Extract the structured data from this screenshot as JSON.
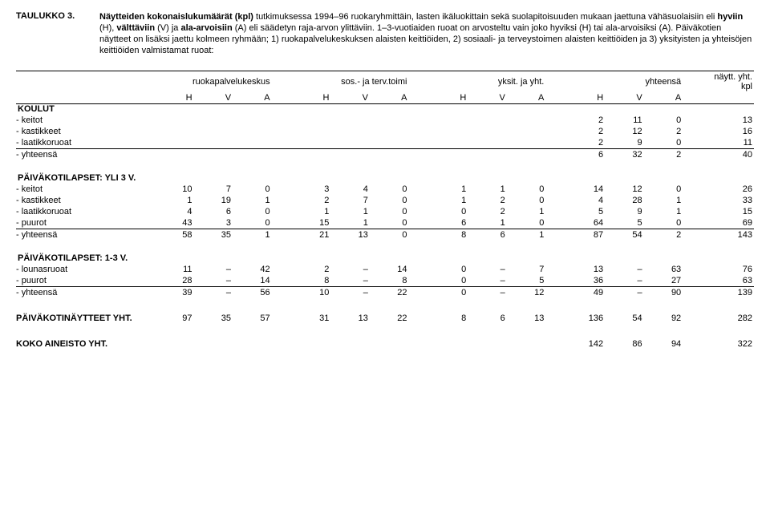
{
  "header": {
    "label": "TAULUKKO 3.",
    "p1_a": "Näytteiden kokonaislukumäärät (kpl)",
    "p1_b": " tutkimuksessa 1994–96 ruokaryhmittäin, lasten ikäluokittain sekä suolapitoisuuden mukaan jaettuna vähäsuolaisiin eli ",
    "p1_c": "hyviin",
    "p1_d": " (H), ",
    "p1_e": "välttäviin",
    "p1_f": " (V) ja ",
    "p1_g": "ala-arvoisiin",
    "p1_h": " (A) eli säädetyn raja-arvon ylittäviin. 1–3-vuotiaiden ruoat on arvosteltu vain joko hyviksi (H) tai ala-arvoisiksi (A). Päiväkotien näytteet on lisäksi jaettu kolmeen ryhmään; 1) ruokapalvelukeskuksen alaisten keittiöiden, 2) sosiaali- ja terveystoimen alaisten keittiöiden ja 3) yksityisten ja yhteisöjen keittiöiden valmistamat ruoat:"
  },
  "cols": {
    "g1": "ruokapalvelukeskus",
    "g2": "sos.- ja terv.toimi",
    "g3": "yksit. ja yht.",
    "g4": "yhteensä",
    "g5a": "näytt. yht.",
    "g5b": "kpl",
    "H": "H",
    "V": "V",
    "A": "A"
  },
  "sections": [
    {
      "title": "KOULUT",
      "rows": [
        {
          "l": "- keitot",
          "c": [
            "",
            "",
            "",
            "",
            "",
            "",
            "",
            "",
            "",
            "2",
            "11",
            "0",
            "13"
          ]
        },
        {
          "l": "- kastikkeet",
          "c": [
            "",
            "",
            "",
            "",
            "",
            "",
            "",
            "",
            "",
            "2",
            "12",
            "2",
            "16"
          ]
        },
        {
          "l": "- laatikkoruoat",
          "c": [
            "",
            "",
            "",
            "",
            "",
            "",
            "",
            "",
            "",
            "2",
            "9",
            "0",
            "11"
          ],
          "u": true
        },
        {
          "l": "- yhteensä",
          "c": [
            "",
            "",
            "",
            "",
            "",
            "",
            "",
            "",
            "",
            "6",
            "32",
            "2",
            "40"
          ],
          "ru": true
        }
      ]
    },
    {
      "title": "PÄIVÄKOTILAPSET: YLI 3 V.",
      "rows": [
        {
          "l": "- keitot",
          "c": [
            "10",
            "7",
            "0",
            "3",
            "4",
            "0",
            "1",
            "1",
            "0",
            "14",
            "12",
            "0",
            "26"
          ]
        },
        {
          "l": "- kastikkeet",
          "c": [
            "1",
            "19",
            "1",
            "2",
            "7",
            "0",
            "1",
            "2",
            "0",
            "4",
            "28",
            "1",
            "33"
          ]
        },
        {
          "l": "- laatikkoruoat",
          "c": [
            "4",
            "6",
            "0",
            "1",
            "1",
            "0",
            "0",
            "2",
            "1",
            "5",
            "9",
            "1",
            "15"
          ]
        },
        {
          "l": "- puurot",
          "c": [
            "43",
            "3",
            "0",
            "15",
            "1",
            "0",
            "6",
            "1",
            "0",
            "64",
            "5",
            "0",
            "69"
          ],
          "u": true
        },
        {
          "l": "- yhteensä",
          "c": [
            "58",
            "35",
            "1",
            "21",
            "13",
            "0",
            "8",
            "6",
            "1",
            "87",
            "54",
            "2",
            "143"
          ],
          "ru": true
        }
      ]
    },
    {
      "title": "PÄIVÄKOTILAPSET: 1-3 V.",
      "rows": [
        {
          "l": "- lounasruoat",
          "c": [
            "11",
            "–",
            "42",
            "2",
            "–",
            "14",
            "0",
            "–",
            "7",
            "13",
            "–",
            "63",
            "76"
          ]
        },
        {
          "l": "- puurot",
          "c": [
            "28",
            "–",
            "14",
            "8",
            "–",
            "8",
            "0",
            "–",
            "5",
            "36",
            "–",
            "27",
            "63"
          ],
          "u": true
        },
        {
          "l": "- yhteensä",
          "c": [
            "39",
            "–",
            "56",
            "10",
            "–",
            "22",
            "0",
            "–",
            "12",
            "49",
            "–",
            "90",
            "139"
          ],
          "ru": true
        }
      ]
    },
    {
      "title": "",
      "rows": [
        {
          "l": "PÄIVÄKOTINÄYTTEET YHT.",
          "c": [
            "97",
            "35",
            "57",
            "31",
            "13",
            "22",
            "8",
            "6",
            "13",
            "136",
            "54",
            "92",
            "282"
          ],
          "bold": true
        }
      ]
    },
    {
      "title": "",
      "rows": [
        {
          "l": "KOKO AINEISTO YHT.",
          "c": [
            "",
            "",
            "",
            "",
            "",
            "",
            "",
            "",
            "",
            "142",
            "86",
            "94",
            "322"
          ],
          "bold": true
        }
      ]
    }
  ]
}
